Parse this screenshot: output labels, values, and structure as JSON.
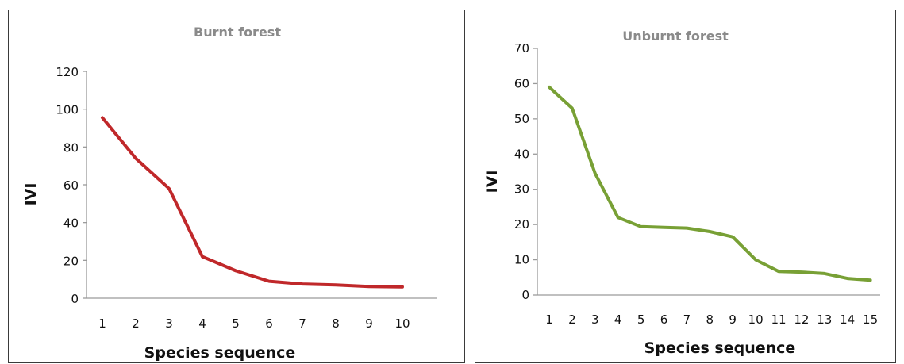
{
  "chart_data": [
    {
      "type": "line",
      "title": "Burnt forest",
      "xlabel": "Species sequence",
      "ylabel": "IVI",
      "ylim": [
        0,
        120
      ],
      "yticks": [
        0,
        20,
        40,
        60,
        80,
        100,
        120
      ],
      "grid": false,
      "line_color": "#c0282a",
      "categories": [
        "1",
        "2",
        "3",
        "4",
        "5",
        "6",
        "7",
        "8",
        "9",
        "10"
      ],
      "series": [
        {
          "values": [
            95.5,
            74,
            58,
            22,
            14.5,
            9,
            7.5,
            7,
            6.2,
            6
          ]
        }
      ]
    },
    {
      "type": "line",
      "title": "Unburnt forest",
      "xlabel": "Species sequence",
      "ylabel": "IVI",
      "ylim": [
        0,
        70
      ],
      "yticks": [
        0,
        10,
        20,
        30,
        40,
        50,
        60,
        70
      ],
      "grid": false,
      "line_color": "#78a035",
      "categories": [
        "1",
        "2",
        "3",
        "4",
        "5",
        "6",
        "7",
        "8",
        "9",
        "10",
        "11",
        "12",
        "13",
        "14",
        "15"
      ],
      "series": [
        {
          "values": [
            59,
            53,
            34.5,
            22,
            19.4,
            19.2,
            19,
            18,
            16.5,
            10,
            6.7,
            6.5,
            6.1,
            4.7,
            4.2
          ]
        }
      ]
    }
  ]
}
